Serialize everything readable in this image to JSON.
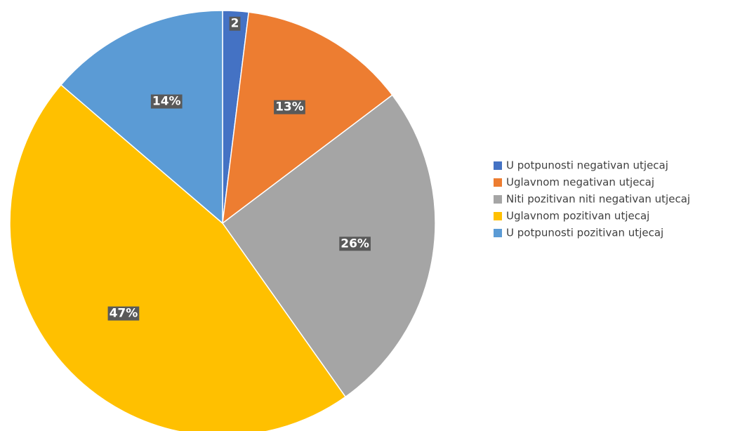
{
  "chart_data": {
    "type": "pie",
    "categories": [
      "U potpunosti negativan utjecaj",
      "Uglavnom negativan utjecaj",
      "Niti pozitivan niti negativan utjecaj",
      "Uglavnom pozitivan utjecaj",
      "U potpunosti pozitivan utjecaj"
    ],
    "values": [
      2,
      13,
      26,
      47,
      14
    ],
    "value_labels": [
      "2",
      "13%",
      "26%",
      "47%",
      "14%"
    ],
    "colors": [
      "#4472c4",
      "#ed7d31",
      "#a5a5a5",
      "#ffc000",
      "#5b9bd5"
    ],
    "legend": "right"
  }
}
